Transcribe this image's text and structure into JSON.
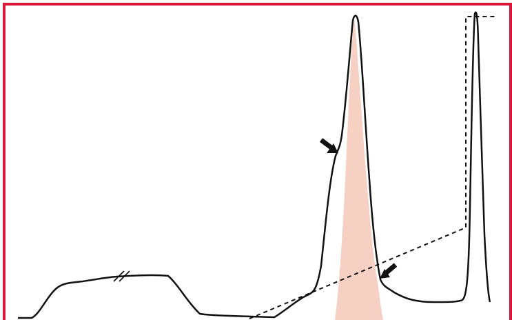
{
  "figure": {
    "border_color": "#d9193a",
    "shaded_peak_color": "#f6d0c2",
    "line_color": "#111111",
    "arrow_color": "#111111",
    "elements": {
      "trace": "chromatogram-trace",
      "gradient": "dashed-gradient-line",
      "break_mark": "axis-break-mark",
      "shaded_region": "shaded-peak-region",
      "arrows": [
        "arrow-icon",
        "arrow-icon"
      ]
    }
  }
}
